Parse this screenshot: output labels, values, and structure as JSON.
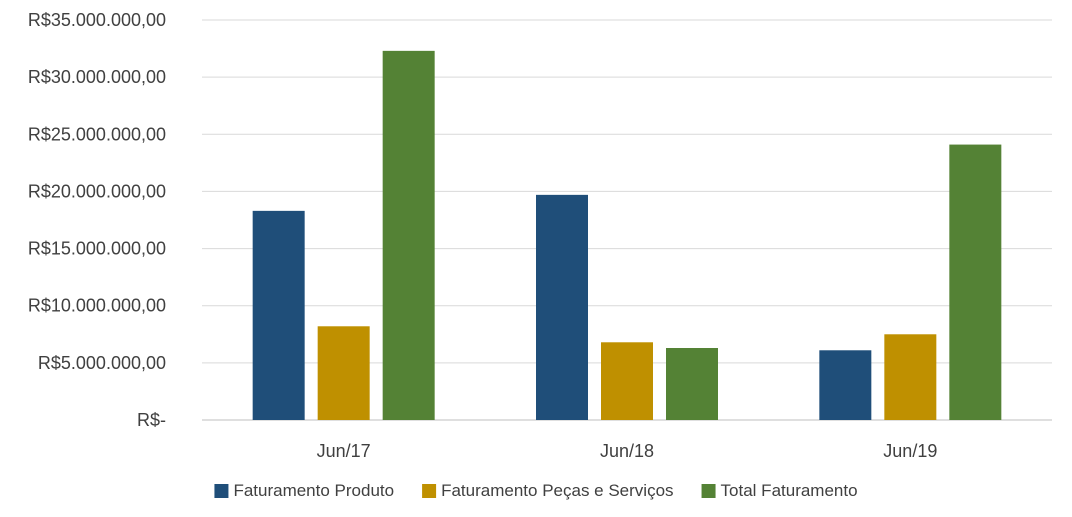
{
  "chart_data": {
    "type": "bar",
    "title": "",
    "xlabel": "",
    "ylabel": "",
    "categories": [
      "Jun/17",
      "Jun/18",
      "Jun/19"
    ],
    "series": [
      {
        "name": "Faturamento Produto",
        "color": "#1f4e79",
        "values": [
          18300000,
          19700000,
          6100000
        ]
      },
      {
        "name": "Faturamento Peças e Serviços",
        "color": "#bf9000",
        "values": [
          8200000,
          6800000,
          7500000
        ]
      },
      {
        "name": "Total Faturamento",
        "color": "#548235",
        "values": [
          32300000,
          6300000,
          24100000
        ]
      }
    ],
    "ylim": [
      0,
      35000000
    ],
    "yticks": [
      0,
      5000000,
      10000000,
      15000000,
      20000000,
      25000000,
      30000000,
      35000000
    ],
    "ytick_labels": [
      "R$-",
      "R$5.000.000,00",
      "R$10.000.000,00",
      "R$15.000.000,00",
      "R$20.000.000,00",
      "R$25.000.000,00",
      "R$30.000.000,00",
      "R$35.000.000,00"
    ],
    "grid": true,
    "legend_position": "bottom"
  }
}
